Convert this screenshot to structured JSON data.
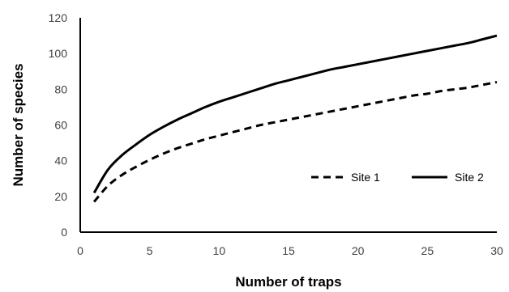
{
  "chart_data": {
    "type": "line",
    "title": "",
    "xlabel": "Number of traps",
    "ylabel": "Number of species",
    "xlim": [
      0,
      30
    ],
    "ylim": [
      0,
      120
    ],
    "x_ticks": [
      0,
      5,
      10,
      15,
      20,
      25,
      30
    ],
    "y_ticks": [
      0,
      20,
      40,
      60,
      80,
      100,
      120
    ],
    "grid": false,
    "legend_position": "inside-right",
    "x": [
      1,
      2,
      3,
      4,
      5,
      6,
      7,
      8,
      9,
      10,
      11,
      12,
      13,
      14,
      15,
      16,
      17,
      18,
      19,
      20,
      21,
      22,
      23,
      24,
      25,
      26,
      27,
      28,
      29,
      30
    ],
    "series": [
      {
        "name": "Site 1",
        "style": "dashed",
        "color": "#000000",
        "values": [
          17,
          26,
          32,
          36.5,
          40.5,
          44,
          47,
          49.5,
          52,
          54,
          56,
          58,
          60,
          61.5,
          63,
          64.5,
          66,
          67.5,
          69,
          70.5,
          72,
          73.5,
          75,
          76.5,
          77.5,
          79,
          80,
          81,
          82.5,
          84
        ]
      },
      {
        "name": "Site 2",
        "style": "solid",
        "color": "#000000",
        "values": [
          22,
          35,
          43,
          49,
          54.5,
          59,
          63,
          66.5,
          70,
          73,
          75.5,
          78,
          80.5,
          83,
          85,
          87,
          89,
          91,
          92.5,
          94,
          95.5,
          97,
          98.5,
          100,
          101.5,
          103,
          104.5,
          106,
          108,
          110
        ]
      }
    ]
  }
}
